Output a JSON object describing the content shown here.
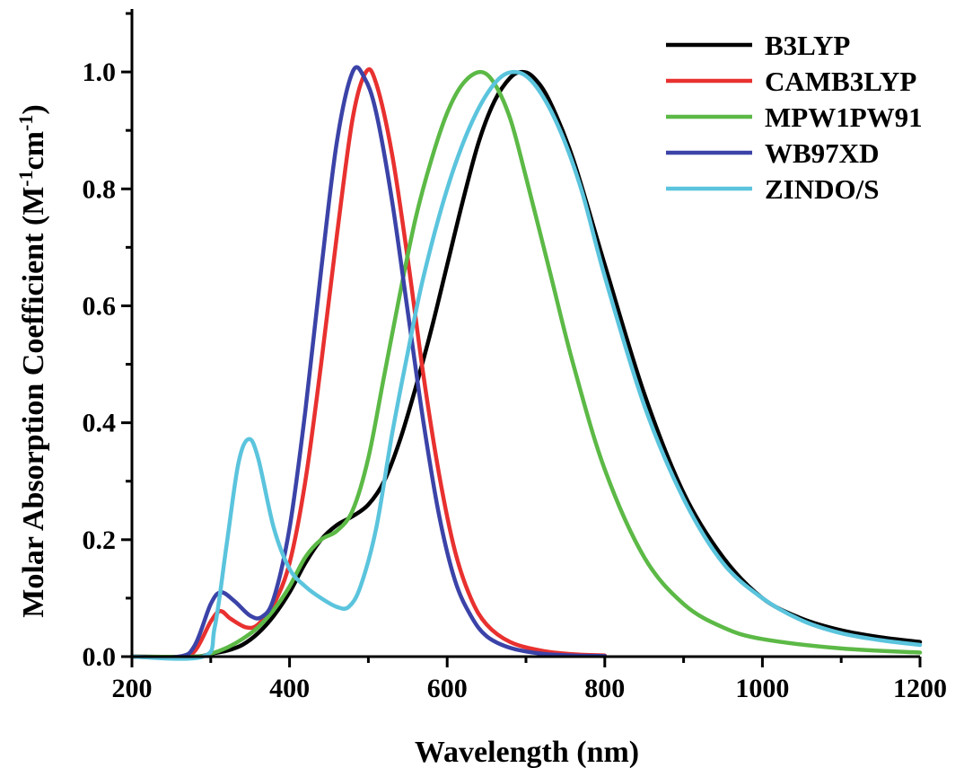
{
  "chart_data": {
    "type": "line",
    "xlabel": "Wavelength (nm)",
    "ylabel": {
      "prefix": "Molar Absorption Coefficient (M",
      "sup1": "-1",
      "middle": "cm",
      "sup2": "-1",
      "suffix": ")"
    },
    "xlim": [
      200,
      1200
    ],
    "ylim": [
      0,
      1.1
    ],
    "x_ticks": [
      "200",
      "400",
      "600",
      "800",
      "1000",
      "1200"
    ],
    "y_ticks": [
      "0.0",
      "0.2",
      "0.4",
      "0.6",
      "0.8",
      "1.0"
    ],
    "legend_position": "top-right",
    "series": [
      {
        "name": "B3LYP",
        "color": "#000000",
        "points": [
          [
            200,
            0
          ],
          [
            280,
            0
          ],
          [
            300,
            0.005
          ],
          [
            320,
            0.01
          ],
          [
            340,
            0.02
          ],
          [
            360,
            0.04
          ],
          [
            380,
            0.07
          ],
          [
            400,
            0.11
          ],
          [
            420,
            0.16
          ],
          [
            440,
            0.2
          ],
          [
            460,
            0.225
          ],
          [
            480,
            0.24
          ],
          [
            500,
            0.26
          ],
          [
            520,
            0.3
          ],
          [
            540,
            0.37
          ],
          [
            560,
            0.46
          ],
          [
            580,
            0.56
          ],
          [
            600,
            0.67
          ],
          [
            620,
            0.78
          ],
          [
            640,
            0.88
          ],
          [
            660,
            0.95
          ],
          [
            680,
            0.99
          ],
          [
            695,
            1.0
          ],
          [
            710,
            0.99
          ],
          [
            730,
            0.95
          ],
          [
            760,
            0.85
          ],
          [
            800,
            0.67
          ],
          [
            850,
            0.45
          ],
          [
            900,
            0.28
          ],
          [
            950,
            0.17
          ],
          [
            1000,
            0.1
          ],
          [
            1050,
            0.065
          ],
          [
            1100,
            0.045
          ],
          [
            1150,
            0.033
          ],
          [
            1200,
            0.025
          ]
        ]
      },
      {
        "name": "CAMB3LYP",
        "color": "#e8312f",
        "points": [
          [
            200,
            0
          ],
          [
            260,
            0
          ],
          [
            280,
            0.01
          ],
          [
            300,
            0.06
          ],
          [
            312,
            0.078
          ],
          [
            325,
            0.065
          ],
          [
            345,
            0.05
          ],
          [
            360,
            0.055
          ],
          [
            380,
            0.09
          ],
          [
            400,
            0.16
          ],
          [
            420,
            0.3
          ],
          [
            440,
            0.5
          ],
          [
            460,
            0.72
          ],
          [
            480,
            0.92
          ],
          [
            497,
            1.0
          ],
          [
            510,
            0.98
          ],
          [
            530,
            0.86
          ],
          [
            550,
            0.68
          ],
          [
            570,
            0.48
          ],
          [
            590,
            0.31
          ],
          [
            610,
            0.18
          ],
          [
            630,
            0.1
          ],
          [
            650,
            0.055
          ],
          [
            680,
            0.025
          ],
          [
            720,
            0.01
          ],
          [
            760,
            0.004
          ],
          [
            800,
            0.002
          ]
        ]
      },
      {
        "name": "MPW1PW91",
        "color": "#5cb946",
        "points": [
          [
            200,
            0
          ],
          [
            280,
            0
          ],
          [
            300,
            0.005
          ],
          [
            320,
            0.015
          ],
          [
            340,
            0.03
          ],
          [
            360,
            0.05
          ],
          [
            380,
            0.08
          ],
          [
            400,
            0.12
          ],
          [
            420,
            0.17
          ],
          [
            440,
            0.2
          ],
          [
            460,
            0.215
          ],
          [
            480,
            0.25
          ],
          [
            500,
            0.34
          ],
          [
            520,
            0.48
          ],
          [
            540,
            0.62
          ],
          [
            560,
            0.75
          ],
          [
            580,
            0.85
          ],
          [
            600,
            0.93
          ],
          [
            620,
            0.98
          ],
          [
            642,
            1.0
          ],
          [
            660,
            0.98
          ],
          [
            680,
            0.92
          ],
          [
            700,
            0.82
          ],
          [
            730,
            0.66
          ],
          [
            760,
            0.5
          ],
          [
            800,
            0.32
          ],
          [
            850,
            0.17
          ],
          [
            900,
            0.09
          ],
          [
            950,
            0.05
          ],
          [
            1000,
            0.03
          ],
          [
            1100,
            0.014
          ],
          [
            1200,
            0.007
          ]
        ]
      },
      {
        "name": "WB97XD",
        "color": "#3b43a8",
        "points": [
          [
            200,
            0
          ],
          [
            260,
            0
          ],
          [
            280,
            0.02
          ],
          [
            300,
            0.09
          ],
          [
            313,
            0.11
          ],
          [
            330,
            0.095
          ],
          [
            350,
            0.07
          ],
          [
            365,
            0.068
          ],
          [
            380,
            0.1
          ],
          [
            400,
            0.22
          ],
          [
            420,
            0.42
          ],
          [
            440,
            0.66
          ],
          [
            460,
            0.88
          ],
          [
            480,
            1.0
          ],
          [
            495,
            0.99
          ],
          [
            510,
            0.93
          ],
          [
            530,
            0.78
          ],
          [
            550,
            0.59
          ],
          [
            570,
            0.4
          ],
          [
            590,
            0.24
          ],
          [
            610,
            0.13
          ],
          [
            630,
            0.07
          ],
          [
            650,
            0.035
          ],
          [
            680,
            0.015
          ],
          [
            720,
            0.005
          ],
          [
            760,
            0.002
          ],
          [
            800,
            0.001
          ]
        ]
      },
      {
        "name": "ZINDO/S",
        "color": "#5bc4dd",
        "points": [
          [
            200,
            0
          ],
          [
            290,
            0
          ],
          [
            305,
            0.05
          ],
          [
            320,
            0.19
          ],
          [
            335,
            0.33
          ],
          [
            348,
            0.372
          ],
          [
            360,
            0.34
          ],
          [
            380,
            0.22
          ],
          [
            400,
            0.15
          ],
          [
            420,
            0.12
          ],
          [
            440,
            0.1
          ],
          [
            460,
            0.085
          ],
          [
            475,
            0.085
          ],
          [
            490,
            0.12
          ],
          [
            510,
            0.22
          ],
          [
            530,
            0.38
          ],
          [
            550,
            0.52
          ],
          [
            570,
            0.65
          ],
          [
            600,
            0.8
          ],
          [
            630,
            0.91
          ],
          [
            660,
            0.98
          ],
          [
            685,
            1.0
          ],
          [
            710,
            0.98
          ],
          [
            740,
            0.91
          ],
          [
            770,
            0.8
          ],
          [
            800,
            0.65
          ],
          [
            850,
            0.43
          ],
          [
            900,
            0.27
          ],
          [
            950,
            0.16
          ],
          [
            1000,
            0.1
          ],
          [
            1050,
            0.062
          ],
          [
            1100,
            0.04
          ],
          [
            1150,
            0.028
          ],
          [
            1200,
            0.02
          ]
        ]
      }
    ]
  }
}
